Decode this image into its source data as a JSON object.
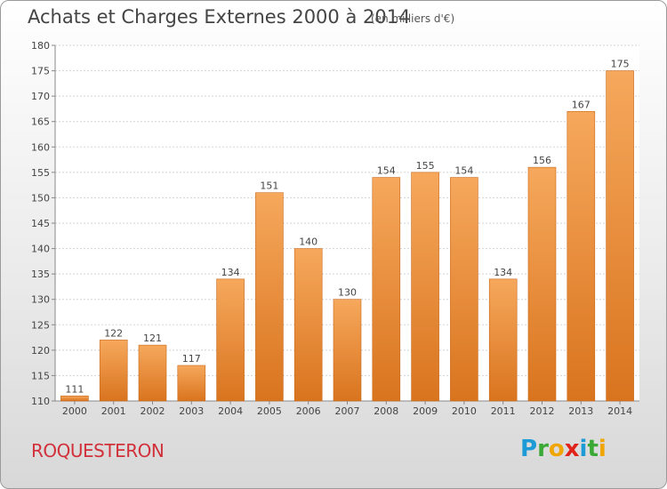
{
  "header": {
    "title": "Achats et Charges Externes 2000 à 2014",
    "unit": "(en milliers d'€)"
  },
  "footer": {
    "commune": "ROQUESTERON",
    "brand": "Proxiti",
    "brand_letters": [
      "P",
      "r",
      "o",
      "x",
      "i",
      "t",
      "i"
    ]
  },
  "colors": {
    "bar_light": "#f6a85c",
    "bar_dark": "#d9741e",
    "commune": "#d2303a"
  },
  "chart_data": {
    "type": "bar",
    "title": "Achats et Charges Externes 2000 à 2014",
    "subtitle": "(en milliers d'€)",
    "categories": [
      "2000",
      "2001",
      "2002",
      "2003",
      "2004",
      "2005",
      "2006",
      "2007",
      "2008",
      "2009",
      "2010",
      "2011",
      "2012",
      "2013",
      "2014"
    ],
    "values": [
      111,
      122,
      121,
      117,
      134,
      151,
      140,
      130,
      154,
      155,
      154,
      134,
      156,
      167,
      175
    ],
    "ylim": [
      110,
      180
    ],
    "yticks": [
      110,
      115,
      120,
      125,
      130,
      135,
      140,
      145,
      150,
      155,
      160,
      165,
      170,
      175,
      180
    ],
    "grid": true,
    "xlabel": "",
    "ylabel": ""
  }
}
